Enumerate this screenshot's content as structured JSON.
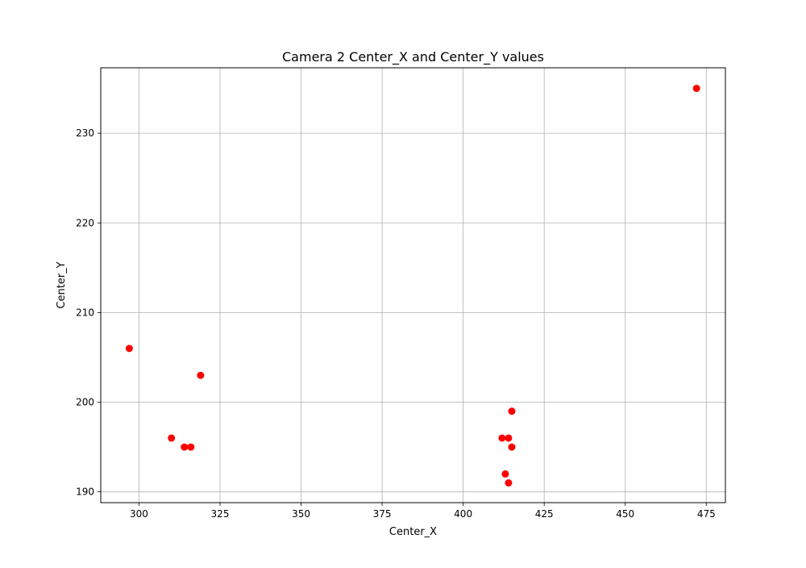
{
  "chart_data": {
    "type": "scatter",
    "title": "Camera 2 Center_X and Center_Y values",
    "xlabel": "Center_X",
    "ylabel": "Center_Y",
    "xlim": [
      288.2,
      480.9
    ],
    "ylim": [
      188.8,
      237.3
    ],
    "xticks": [
      300,
      325,
      350,
      375,
      400,
      425,
      450,
      475
    ],
    "yticks": [
      190,
      200,
      210,
      220,
      230
    ],
    "grid": true,
    "marker_color": "#ff0000",
    "grid_color": "#b0b0b0",
    "points": [
      {
        "x": 297,
        "y": 206
      },
      {
        "x": 319,
        "y": 203
      },
      {
        "x": 310,
        "y": 196
      },
      {
        "x": 314,
        "y": 195
      },
      {
        "x": 316,
        "y": 195
      },
      {
        "x": 415,
        "y": 199
      },
      {
        "x": 412,
        "y": 196
      },
      {
        "x": 414,
        "y": 196
      },
      {
        "x": 415,
        "y": 195
      },
      {
        "x": 413,
        "y": 192
      },
      {
        "x": 414,
        "y": 191
      },
      {
        "x": 472,
        "y": 235
      }
    ]
  }
}
